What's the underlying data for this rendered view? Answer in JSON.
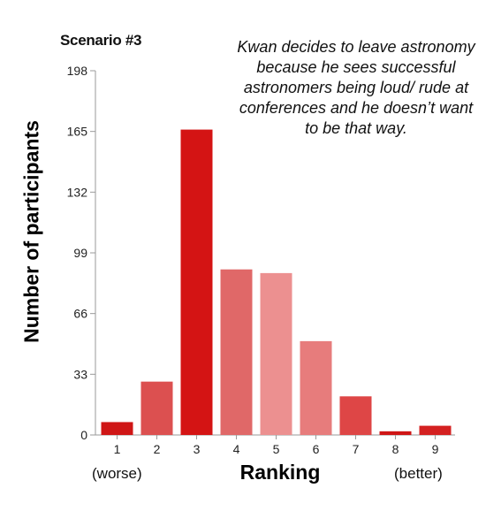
{
  "chart_data": {
    "type": "bar",
    "title": "Scenario #3",
    "annotation": "Kwan decides to leave astronomy because he sees successful astronomers being loud/ rude at conferences and he doesn’t want to be that way.",
    "xlabel": "Ranking",
    "ylabel": "Number of participants",
    "x_left_note": "(worse)",
    "x_right_note": "(better)",
    "categories": [
      "1",
      "2",
      "3",
      "4",
      "5",
      "6",
      "7",
      "8",
      "9"
    ],
    "values": [
      7,
      29,
      166,
      90,
      88,
      51,
      21,
      2,
      5
    ],
    "colors": [
      "#cf1616",
      "#dc5050",
      "#d41414",
      "#e06868",
      "#ec9090",
      "#e77c7c",
      "#de4646",
      "#cf1616",
      "#d42121"
    ],
    "ylim": [
      0,
      198
    ],
    "yticks": [
      0,
      33,
      66,
      99,
      132,
      165,
      198
    ],
    "grid": false
  }
}
